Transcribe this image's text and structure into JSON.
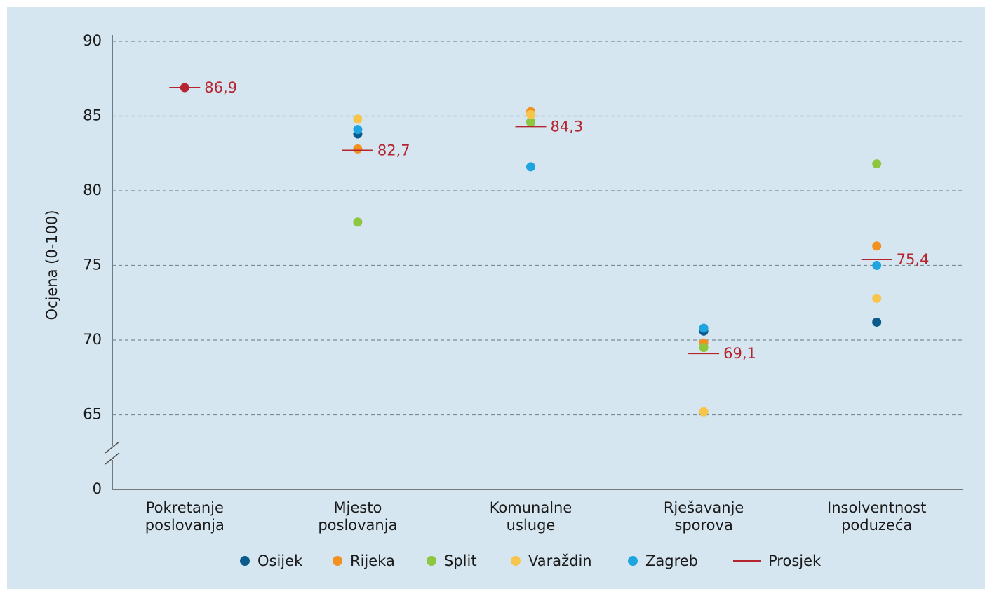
{
  "chart_data": {
    "type": "scatter",
    "y_label": "Ocjena (0-100)",
    "categories": [
      "Pokretanje\nposlovanja",
      "Mjesto\nposlovanja",
      "Komunalne\nusluge",
      "Rješavanje\nsporova",
      "Insolventnost\npoduzeća"
    ],
    "series": [
      {
        "name": "Osijek",
        "color": "#0b5a8c",
        "values": [
          null,
          83.8,
          84.6,
          70.6,
          71.2
        ]
      },
      {
        "name": "Rijeka",
        "color": "#f39120",
        "values": [
          null,
          82.8,
          85.3,
          69.8,
          76.3
        ]
      },
      {
        "name": "Split",
        "color": "#8dc63f",
        "values": [
          null,
          77.9,
          84.6,
          69.5,
          81.8
        ]
      },
      {
        "name": "Varaždin",
        "color": "#f6c54a",
        "values": [
          null,
          84.8,
          85.1,
          65.2,
          72.8
        ]
      },
      {
        "name": "Zagreb",
        "color": "#1ea5e0",
        "values": [
          null,
          84.1,
          81.6,
          70.8,
          75.0
        ]
      }
    ],
    "average": {
      "name": "Prosjek",
      "color": "#b5252f",
      "values": [
        86.9,
        82.7,
        84.3,
        69.1,
        75.4
      ],
      "value_labels": [
        "86,9",
        "82,7",
        "84,3",
        "69,1",
        "75,4"
      ]
    },
    "ylim": [
      0,
      90
    ],
    "y_break": [
      0,
      60
    ],
    "yticks": [
      0,
      65,
      70,
      75,
      80,
      85,
      90
    ],
    "grid": true,
    "legend": "bottom"
  }
}
